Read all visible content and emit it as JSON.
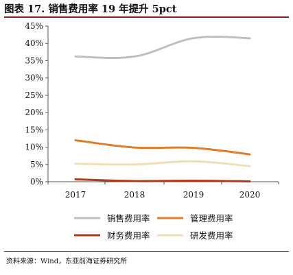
{
  "header": {
    "title": "图表 17. 销售费用率 19 年提升 5pct"
  },
  "footer": {
    "source": "资料来源：Wind，东亚前海证券研究所"
  },
  "chart_data": {
    "type": "line",
    "title": "",
    "xlabel": "",
    "ylabel": "",
    "categories": [
      "2017",
      "2018",
      "2019",
      "2020"
    ],
    "ylim": [
      0,
      45
    ],
    "y_ticks": [
      "0%",
      "5%",
      "10%",
      "15%",
      "20%",
      "25%",
      "30%",
      "35%",
      "40%",
      "45%"
    ],
    "grid": false,
    "legend_position": "bottom",
    "series": [
      {
        "name": "销售费用率",
        "color": "#bfbfbf",
        "values": [
          36.2,
          36.2,
          41.5,
          41.5
        ]
      },
      {
        "name": "管理费用率",
        "color": "#e07c2a",
        "values": [
          12.0,
          9.9,
          9.8,
          7.9
        ]
      },
      {
        "name": "财务费用率",
        "color": "#b03a1e",
        "values": [
          0.7,
          0.2,
          0.3,
          0.1
        ]
      },
      {
        "name": "研发费用率",
        "color": "#f0dfb6",
        "values": [
          5.2,
          5.0,
          5.9,
          4.5
        ]
      }
    ]
  }
}
